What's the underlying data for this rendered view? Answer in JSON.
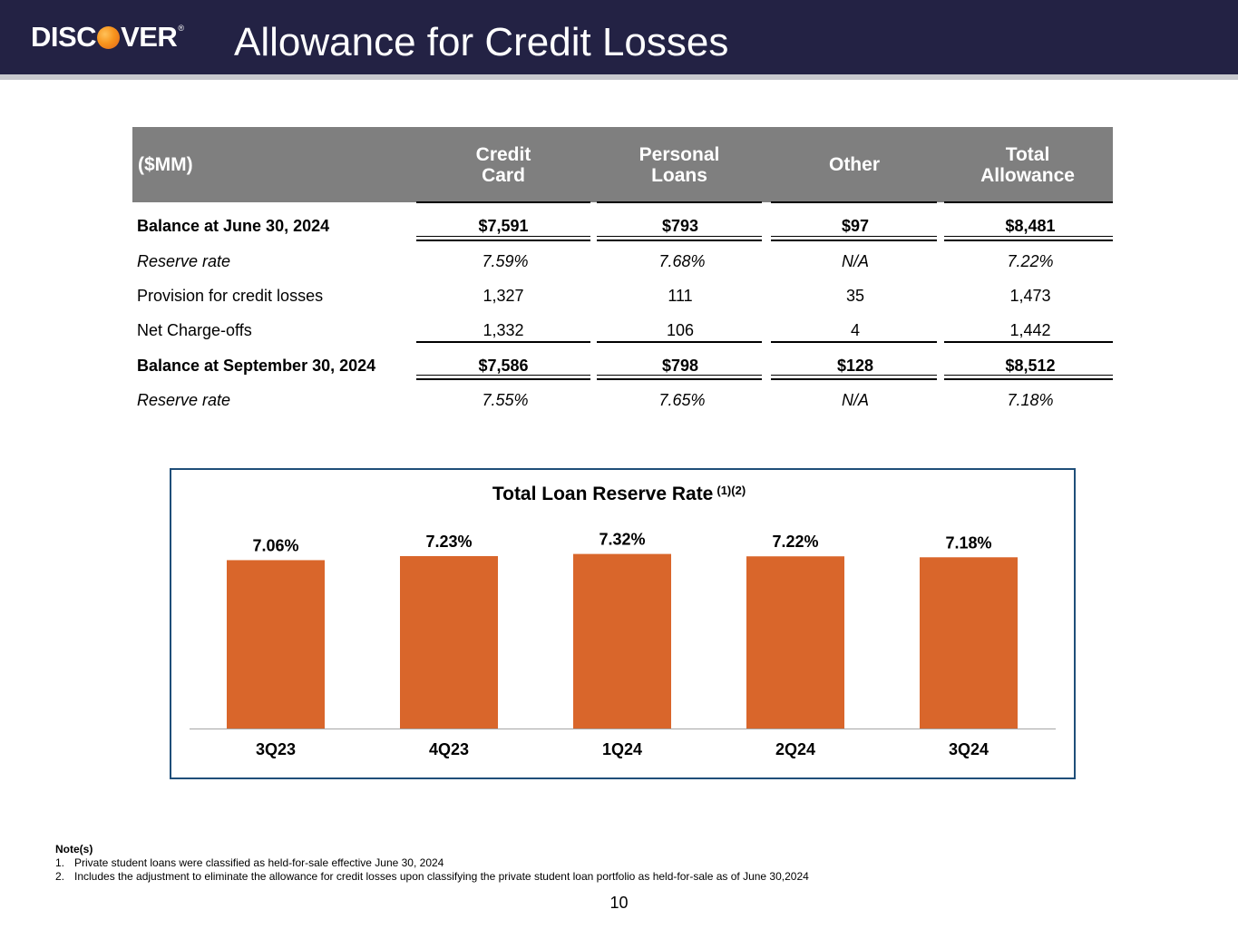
{
  "header": {
    "logo_text_pre": "DISC",
    "logo_text_post": "VER",
    "logo_reg": "®",
    "title": "Allowance for Credit Losses"
  },
  "table": {
    "header_label": "($MM)",
    "columns": [
      {
        "line1": "Credit",
        "line2": "Card"
      },
      {
        "line1": "Personal",
        "line2": "Loans"
      },
      {
        "line1": "Other",
        "line2": ""
      },
      {
        "line1": "Total",
        "line2": "Allowance"
      }
    ],
    "rows": [
      {
        "label": "Balance at June 30, 2024",
        "values": [
          "$7,591",
          "$793",
          "$97",
          "$8,481"
        ],
        "style": "bold"
      },
      {
        "label": "Reserve rate",
        "values": [
          "7.59%",
          "7.68%",
          "N/A",
          "7.22%"
        ],
        "style": "italic"
      },
      {
        "label": "Provision for credit losses",
        "values": [
          "1,327",
          "111",
          "35",
          "1,473"
        ],
        "style": "normal"
      },
      {
        "label": "Net Charge-offs",
        "values": [
          "1,332",
          "106",
          "4",
          "1,442"
        ],
        "style": "normal"
      },
      {
        "label": "Balance at September 30, 2024",
        "values": [
          "$7,586",
          "$798",
          "$128",
          "$8,512"
        ],
        "style": "bold"
      },
      {
        "label": "Reserve rate",
        "values": [
          "7.55%",
          "7.65%",
          "N/A",
          "7.18%"
        ],
        "style": "italic"
      }
    ]
  },
  "chart_title": "Total Loan Reserve Rate",
  "chart_title_sup": "(1)(2)",
  "chart_data": {
    "type": "bar",
    "title": "Total Loan Reserve Rate (1)(2)",
    "categories": [
      "3Q23",
      "4Q23",
      "1Q24",
      "2Q24",
      "3Q24"
    ],
    "values": [
      7.06,
      7.23,
      7.32,
      7.22,
      7.18
    ],
    "data_labels": [
      "7.06%",
      "7.23%",
      "7.32%",
      "7.22%",
      "7.18%"
    ],
    "xlabel": "",
    "ylabel": "",
    "unit": "%",
    "bar_color": "#d9662b",
    "grid": false
  },
  "notes": {
    "heading": "Note(s)",
    "items": [
      {
        "num": "1.",
        "text": "Private student loans were classified as held-for-sale effective June 30, 2024"
      },
      {
        "num": "2.",
        "text": "Includes the adjustment to eliminate the allowance for credit losses upon classifying the private student loan portfolio as held-for-sale as of June 30,2024"
      }
    ]
  },
  "page_number": "10"
}
